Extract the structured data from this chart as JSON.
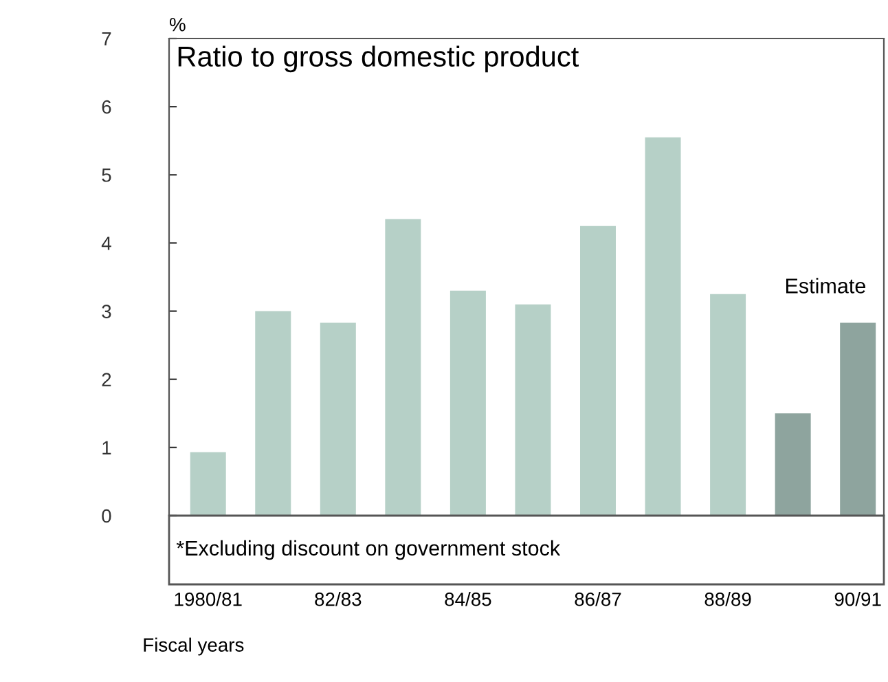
{
  "chart_data": {
    "type": "bar",
    "title": "Ratio to gross domestic product",
    "ylabel": "%",
    "xlabel": "Fiscal years",
    "categories": [
      "1980/81",
      null,
      "82/83",
      null,
      "84/85",
      null,
      "86/87",
      null,
      "88/89",
      null,
      "90/91"
    ],
    "values": [
      0.93,
      3.0,
      2.83,
      4.35,
      3.3,
      3.1,
      4.25,
      5.55,
      3.25,
      1.5,
      2.83
    ],
    "colors": [
      "#b6d0c7",
      "#b6d0c7",
      "#b6d0c7",
      "#b6d0c7",
      "#b6d0c7",
      "#b6d0c7",
      "#b6d0c7",
      "#b6d0c7",
      "#b6d0c7",
      "#8ea49e",
      "#8ea49e"
    ],
    "ylim": [
      0,
      7
    ],
    "yticks": [
      0,
      1,
      2,
      3,
      4,
      5,
      6,
      7
    ],
    "grid": false,
    "legend": false,
    "annotations": [
      "Estimate",
      "*Excluding discount on government stock"
    ]
  }
}
